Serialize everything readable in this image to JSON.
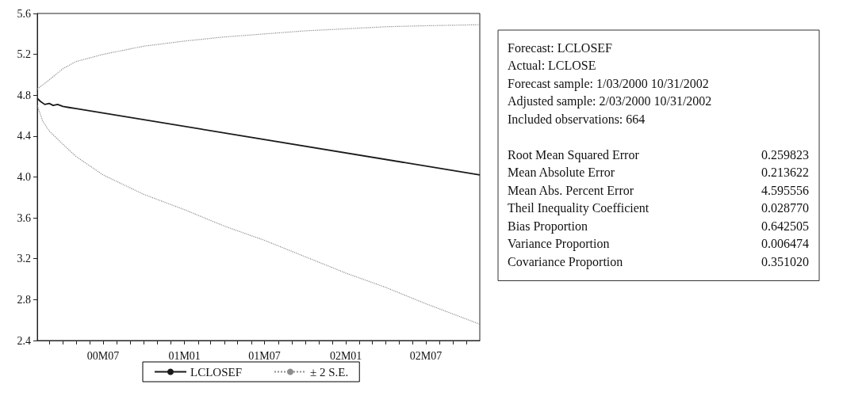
{
  "chart_data": {
    "type": "line",
    "xlim": [
      "2000-02-03",
      "2002-10-31"
    ],
    "xticks": [
      {
        "value": "2000-03-01",
        "label": null
      },
      {
        "value": "2000-04-01",
        "label": null
      },
      {
        "value": "2000-05-01",
        "label": null
      },
      {
        "value": "2000-06-01",
        "label": null
      },
      {
        "value": "2000-07-01",
        "label": "00M07"
      },
      {
        "value": "2000-08-01",
        "label": null
      },
      {
        "value": "2000-09-01",
        "label": null
      },
      {
        "value": "2000-10-01",
        "label": null
      },
      {
        "value": "2000-11-01",
        "label": null
      },
      {
        "value": "2000-12-01",
        "label": null
      },
      {
        "value": "2001-01-01",
        "label": "01M01"
      },
      {
        "value": "2001-02-01",
        "label": null
      },
      {
        "value": "2001-03-01",
        "label": null
      },
      {
        "value": "2001-04-01",
        "label": null
      },
      {
        "value": "2001-05-01",
        "label": null
      },
      {
        "value": "2001-06-01",
        "label": null
      },
      {
        "value": "2001-07-01",
        "label": "01M07"
      },
      {
        "value": "2001-08-01",
        "label": null
      },
      {
        "value": "2001-09-01",
        "label": null
      },
      {
        "value": "2001-10-01",
        "label": null
      },
      {
        "value": "2001-11-01",
        "label": null
      },
      {
        "value": "2001-12-01",
        "label": null
      },
      {
        "value": "2002-01-01",
        "label": "02M01"
      },
      {
        "value": "2002-02-01",
        "label": null
      },
      {
        "value": "2002-03-01",
        "label": null
      },
      {
        "value": "2002-04-01",
        "label": null
      },
      {
        "value": "2002-05-01",
        "label": null
      },
      {
        "value": "2002-06-01",
        "label": null
      },
      {
        "value": "2002-07-01",
        "label": "02M07"
      },
      {
        "value": "2002-08-01",
        "label": null
      },
      {
        "value": "2002-09-01",
        "label": null
      },
      {
        "value": "2002-10-01",
        "label": null
      }
    ],
    "ylim": [
      2.4,
      5.6
    ],
    "yticks": [
      2.4,
      2.8,
      3.2,
      3.6,
      {
        "value": 4,
        "label": "4.0"
      },
      4.4,
      4.8,
      5.2,
      5.6
    ],
    "grid": false,
    "legend": "bottom",
    "marker": "none",
    "series": [
      {
        "name": "LCLOSEF",
        "color": "#1a1a1a",
        "line_style": "solid",
        "x": [
          "2000-02-03",
          "2000-02-10",
          "2000-02-20",
          "2000-03-01",
          "2000-03-10",
          "2000-03-20",
          "2000-04-01",
          "2000-04-15",
          "2000-05-01",
          "2002-10-31"
        ],
        "values": [
          4.77,
          4.74,
          4.71,
          4.72,
          4.7,
          4.71,
          4.69,
          4.68,
          4.67,
          4.02
        ]
      },
      {
        "name": "± 2 S.E.",
        "color": "#8c8c8c",
        "line_style": "dotted",
        "x": [
          "2000-02-03",
          "2000-03-01",
          "2000-04-01",
          "2000-05-01",
          "2000-07-01",
          "2000-10-01",
          "2001-01-01",
          "2001-04-01",
          "2001-07-01",
          "2001-10-01",
          "2002-01-01",
          "2002-04-01",
          "2002-07-01",
          "2002-10-31"
        ],
        "values": [
          4.86,
          4.95,
          5.06,
          5.13,
          5.2,
          5.28,
          5.33,
          5.37,
          5.4,
          5.43,
          5.45,
          5.47,
          5.48,
          5.49
        ]
      },
      {
        "color": "#8c8c8c",
        "line_style": "dotted",
        "x": [
          "2000-02-03",
          "2000-02-15",
          "2000-03-01",
          "2000-04-01",
          "2000-05-01",
          "2000-07-01",
          "2000-10-01",
          "2001-01-01",
          "2001-04-01",
          "2001-07-01",
          "2001-10-01",
          "2002-01-01",
          "2002-04-01",
          "2002-07-01",
          "2002-10-31"
        ],
        "values": [
          4.7,
          4.55,
          4.45,
          4.32,
          4.2,
          4.02,
          3.83,
          3.68,
          3.52,
          3.38,
          3.22,
          3.06,
          2.92,
          2.76,
          2.56
        ]
      }
    ],
    "annotations": [
      "Forecast: LCLOSEF",
      "Actual: LCLOSE",
      "Forecast sample: 1/03/2000 10/31/2002",
      "Adjusted sample: 2/03/2000 10/31/2002",
      "Included observations: 664",
      "Root Mean Squared Error 0.259823",
      "Mean Absolute Error 0.213622",
      "Mean Abs. Percent Error 4.595556",
      "Theil Inequality Coefficient 0.028770",
      "Bias Proportion 0.642505",
      "Variance Proportion 0.006474",
      "Covariance Proportion 0.351020"
    ]
  }
}
